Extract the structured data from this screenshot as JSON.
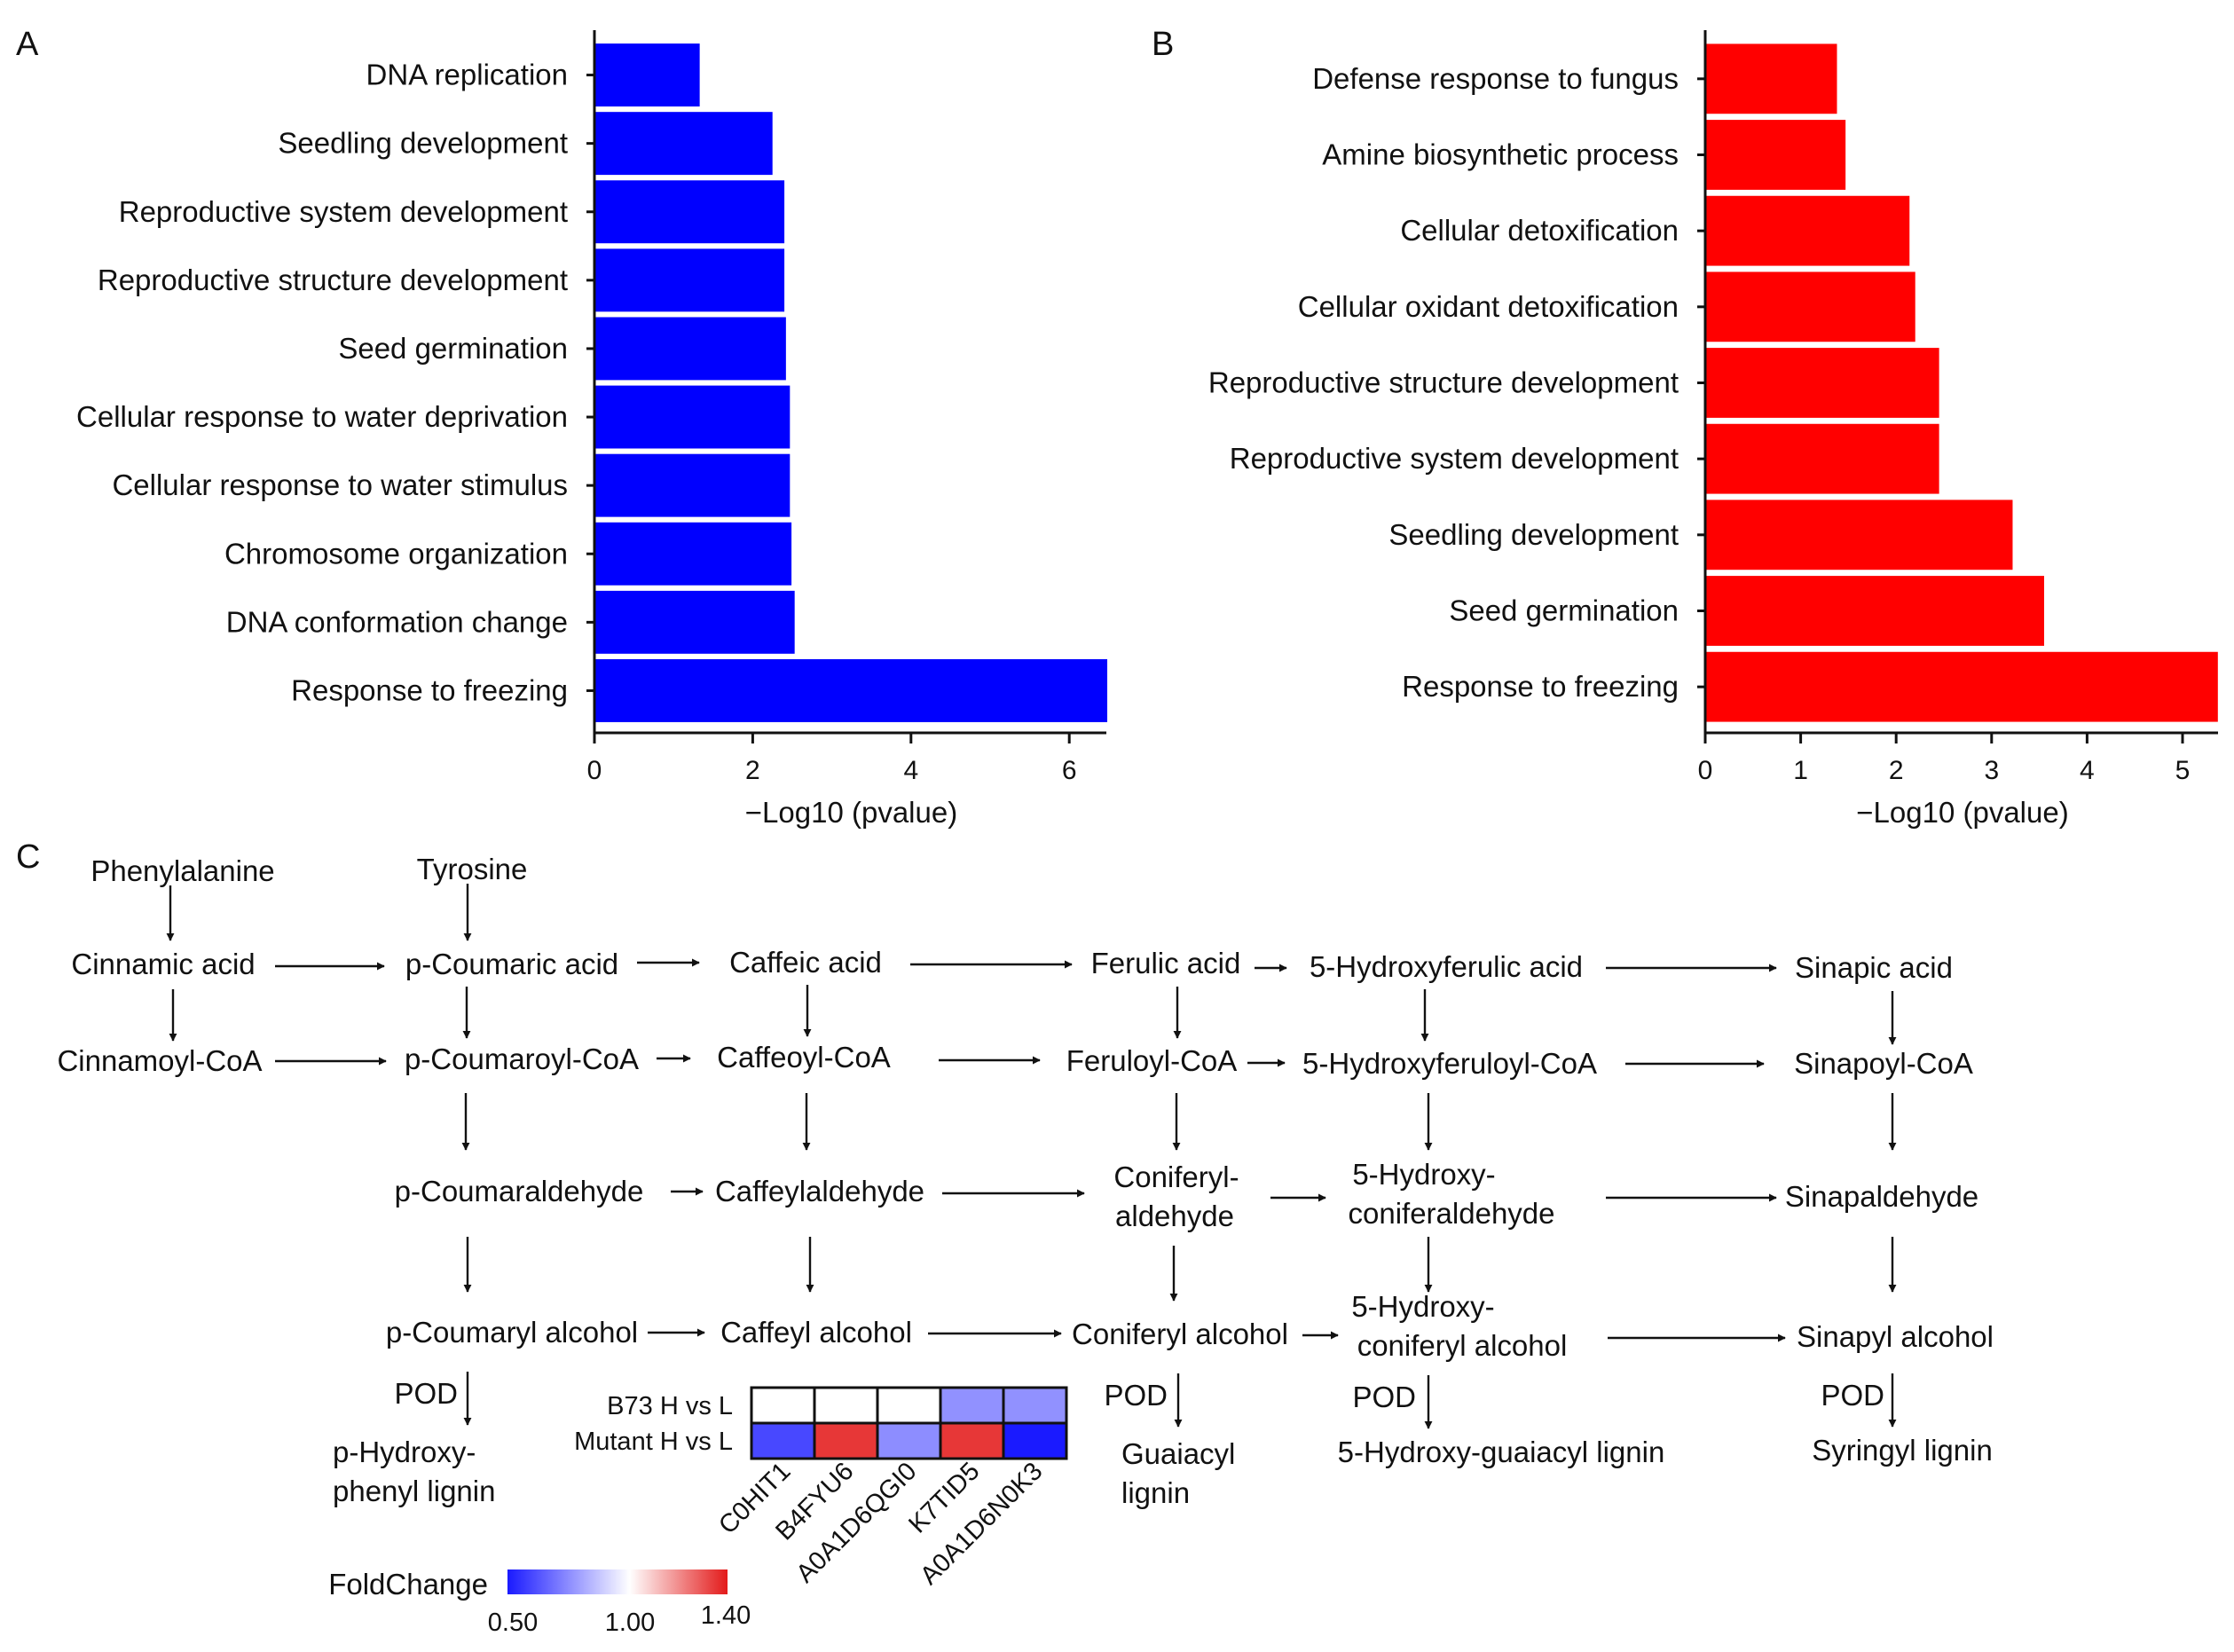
{
  "chart_data": [
    {
      "panel": "A",
      "type": "bar",
      "orientation": "horizontal",
      "title": "",
      "xlabel": "−Log10 (pvalue)",
      "ylabel": "",
      "color": "#0000FF",
      "categories": [
        "DNA replication",
        "Seedling development",
        "Reproductive system development",
        "Reproductive structure development",
        "Seed germination",
        "Cellular response to water deprivation",
        "Cellular response to water stimulus",
        "Chromosome organization",
        "DNA conformation change",
        "Response to freezing"
      ],
      "values": [
        1.33,
        2.25,
        2.4,
        2.4,
        2.42,
        2.47,
        2.47,
        2.49,
        2.53,
        6.48
      ],
      "xlim": [
        0,
        6.5
      ],
      "xticks": [
        "0",
        "2",
        "4",
        "6"
      ]
    },
    {
      "panel": "B",
      "type": "bar",
      "orientation": "horizontal",
      "title": "",
      "xlabel": "−Log10 (pvalue)",
      "ylabel": "",
      "color": "#FF0000",
      "categories": [
        "Defense response to fungus",
        "Amine biosynthetic process",
        "Cellular detoxification",
        "Cellular oxidant detoxification",
        "Reproductive structure development",
        "Reproductive system development",
        "Seedling development",
        "Seed germination",
        "Response to freezing"
      ],
      "values": [
        1.38,
        1.47,
        2.14,
        2.2,
        2.45,
        2.45,
        3.22,
        3.55,
        5.37
      ],
      "xlim": [
        0,
        5.4
      ],
      "xticks": [
        "0",
        "1",
        "2",
        "3",
        "4",
        "5"
      ]
    },
    {
      "panel": "C",
      "type": "heatmap",
      "title": "",
      "rows": [
        "B73 H vs L",
        "Mutant H vs L"
      ],
      "columns": [
        "C0HIT1",
        "B4FYU6",
        "A0A1D6QGI0",
        "K7TID5",
        "A0A1D6N0K3"
      ],
      "values": [
        [
          1.0,
          1.0,
          1.0,
          0.76,
          0.76
        ],
        [
          0.6,
          1.35,
          0.75,
          1.35,
          0.5
        ]
      ],
      "legend_title": "FoldChange",
      "range": [
        0.5,
        1.4
      ],
      "legend_ticks": [
        "0.50",
        "1.00",
        "1.40"
      ],
      "colors": {
        "low": "#1A1AFF",
        "mid": "#FFFFFF",
        "high": "#E31A1A"
      }
    }
  ],
  "panel_labels": {
    "a": "A",
    "b": "B",
    "c": "C"
  },
  "pathway": {
    "phenylalanine": "Phenylalanine",
    "tyrosine": "Tyrosine",
    "cinnamic_acid": "Cinnamic acid",
    "p_coumaric_acid": "p-Coumaric acid",
    "caffeic_acid": "Caffeic acid",
    "ferulic_acid": "Ferulic acid",
    "hydroxyferulic_acid": "5-Hydroxyferulic acid",
    "sinapic_acid": "Sinapic acid",
    "cinnamoyl_coa": "Cinnamoyl-CoA",
    "p_coumaroyl_coa": "p-Coumaroyl-CoA",
    "caffeoyl_coa": "Caffeoyl-CoA",
    "feruloyl_coa": "Feruloyl-CoA",
    "hydroxyferuloyl_coa": "5-Hydroxyferuloyl-CoA",
    "sinapoyl_coa": "Sinapoyl-CoA",
    "p_coumaraldehyde": "p-Coumaraldehyde",
    "caffeylaldehyde": "Caffeylaldehyde",
    "coniferylaldehyde": [
      "Coniferyl-",
      "aldehyde"
    ],
    "hydroxyconiferaldehyde": [
      "5-Hydroxy-",
      "coniferaldehyde"
    ],
    "sinapaldehyde": "Sinapaldehyde",
    "p_coumaryl_alcohol": "p-Coumaryl alcohol",
    "caffeyl_alcohol": "Caffeyl alcohol",
    "coniferyl_alcohol": "Coniferyl alcohol",
    "hydroxyconiferyl_alcohol": [
      "5-Hydroxy-",
      "coniferyl alcohol"
    ],
    "sinapyl_alcohol": "Sinapyl alcohol",
    "pod": "POD",
    "p_hydroxyphenyl_lignin": [
      "p-Hydroxy-",
      "phenyl lignin"
    ],
    "guaiacyl_lignin": [
      "Guaiacyl",
      "lignin"
    ],
    "hydroxyguaiacyl_lignin": "5-Hydroxy-guaiacyl lignin",
    "syringyl_lignin": "Syringyl lignin"
  }
}
